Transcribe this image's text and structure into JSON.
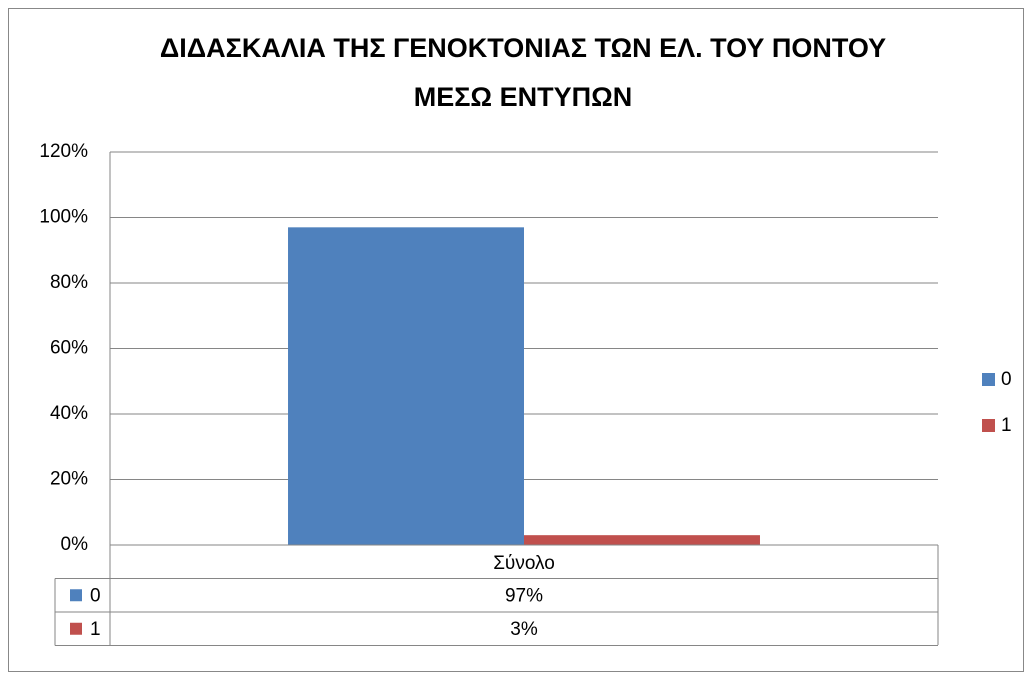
{
  "chart_data": {
    "type": "bar",
    "title": "ΔΙΔΑΣΚΑΛΙΑ ΤΗΣ ΓΕΝΟΚΤΟΝΙΑΣ ΤΩΝ ΕΛ. ΤΟΥ ΠΟΝΤΟΥ ΜΕΣΩ ΕΝΤΥΠΩΝ",
    "categories": [
      "Σύνολο"
    ],
    "series": [
      {
        "name": "0",
        "color": "#4f81bd",
        "values": [
          97
        ],
        "value_labels": [
          "97%"
        ]
      },
      {
        "name": "1",
        "color": "#c0504d",
        "values": [
          3
        ],
        "value_labels": [
          "3%"
        ]
      }
    ],
    "ylim": [
      0,
      120
    ],
    "yticks": [
      {
        "value": 0,
        "label": "0%"
      },
      {
        "value": 20,
        "label": "20%"
      },
      {
        "value": 40,
        "label": "40%"
      },
      {
        "value": 60,
        "label": "60%"
      },
      {
        "value": 80,
        "label": "80%"
      },
      {
        "value": 100,
        "label": "100%"
      },
      {
        "value": 120,
        "label": "120%"
      }
    ],
    "grid": true,
    "legend": "right",
    "data_table": true
  }
}
